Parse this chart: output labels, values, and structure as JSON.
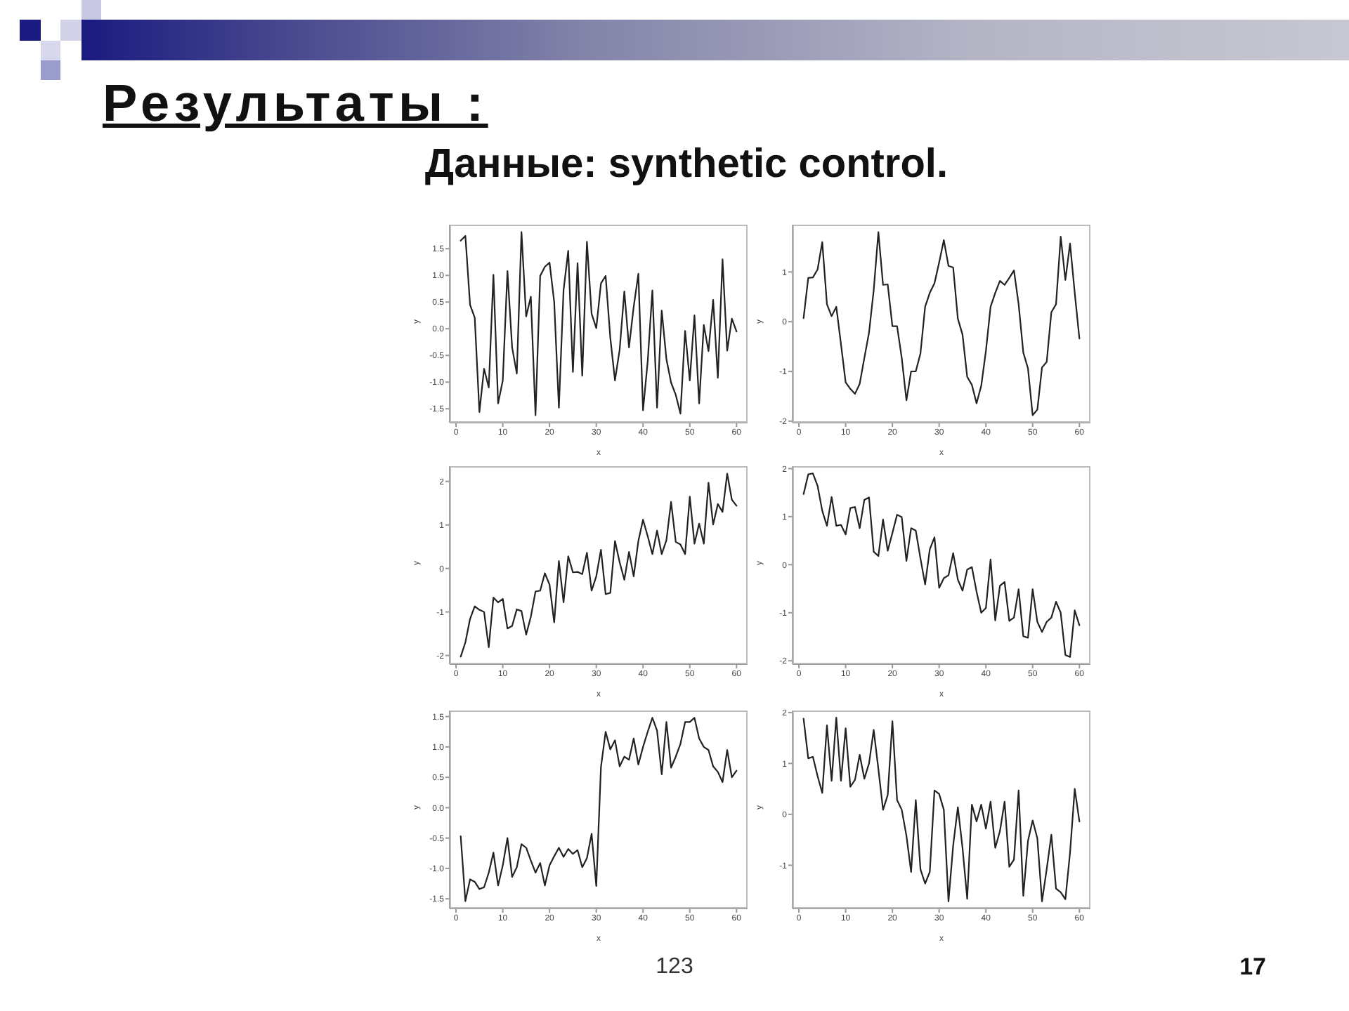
{
  "chart_data": [
    {
      "type": "line",
      "title": "Результаты :",
      "subtitle": "Данные: synthetic control.",
      "annotations": [
        "123",
        "17"
      ],
      "xlabel": "x",
      "ylabel": "y",
      "color": "#222222",
      "marker": "none",
      "xlim": [
        -1.36,
        62.36
      ],
      "xticks": [
        0,
        10,
        20,
        30,
        40,
        50,
        60
      ],
      "ylim": [
        -1.76,
        1.95
      ],
      "yticks": [
        -1.5,
        {
          "value": -1,
          "label": "-1.0"
        },
        -0.5,
        {
          "value": 0,
          "label": "0.0"
        },
        0.5,
        {
          "value": 1,
          "label": "1.0"
        },
        1.5
      ],
      "x": [
        1,
        2,
        3,
        4,
        5,
        6,
        7,
        8,
        9,
        10,
        11,
        12,
        13,
        14,
        15,
        16,
        17,
        18,
        19,
        20,
        21,
        22,
        23,
        24,
        25,
        26,
        27,
        28,
        29,
        30,
        31,
        32,
        33,
        34,
        35,
        36,
        37,
        38,
        39,
        40,
        41,
        42,
        43,
        44,
        45,
        46,
        47,
        48,
        49,
        50,
        51,
        52,
        53,
        54,
        55,
        56,
        57,
        58,
        59,
        60
      ],
      "values": [
        1.65,
        1.74,
        0.45,
        0.21,
        -1.56,
        -0.75,
        -1.1,
        1.01,
        -1.4,
        -0.97,
        1.08,
        -0.35,
        -0.84,
        1.81,
        0.23,
        0.6,
        -1.62,
        0.99,
        1.16,
        1.24,
        0.5,
        -1.48,
        0.72,
        1.46,
        -0.81,
        1.23,
        -0.88,
        1.63,
        0.28,
        0.01,
        0.85,
        0.99,
        -0.17,
        -0.97,
        -0.39,
        0.7,
        -0.35,
        0.41,
        1.03,
        -1.53,
        -0.61,
        0.72,
        -1.48,
        0.34,
        -0.57,
        -1.01,
        -1.24,
        -1.59,
        -0.04,
        -0.97,
        0.25,
        -1.4,
        0.07,
        -0.42,
        0.54,
        -0.92,
        1.3,
        -0.41,
        0.19,
        -0.05
      ]
    },
    {
      "type": "line",
      "xlabel": "x",
      "ylabel": "y",
      "color": "#222222",
      "marker": "none",
      "xlim": [
        -1.36,
        62.36
      ],
      "xticks": [
        0,
        10,
        20,
        30,
        40,
        50,
        60
      ],
      "ylim": [
        -2.03,
        1.95
      ],
      "yticks": [
        -2,
        -1,
        0,
        1
      ],
      "x": [
        1,
        2,
        3,
        4,
        5,
        6,
        7,
        8,
        9,
        10,
        11,
        12,
        13,
        14,
        15,
        16,
        17,
        18,
        19,
        20,
        21,
        22,
        23,
        24,
        25,
        26,
        27,
        28,
        29,
        30,
        31,
        32,
        33,
        34,
        35,
        36,
        37,
        38,
        39,
        40,
        41,
        42,
        43,
        44,
        45,
        46,
        47,
        48,
        49,
        50,
        51,
        52,
        53,
        54,
        55,
        56,
        57,
        58,
        59,
        60
      ],
      "values": [
        0.07,
        0.88,
        0.89,
        1.05,
        1.6,
        0.35,
        0.11,
        0.3,
        -0.45,
        -1.22,
        -1.35,
        -1.45,
        -1.25,
        -0.73,
        -0.22,
        0.63,
        1.8,
        0.74,
        0.75,
        -0.09,
        -0.09,
        -0.73,
        -1.58,
        -1.0,
        -1.0,
        -0.64,
        0.3,
        0.58,
        0.77,
        1.19,
        1.64,
        1.12,
        1.09,
        0.06,
        -0.26,
        -1.11,
        -1.27,
        -1.64,
        -1.29,
        -0.59,
        0.3,
        0.58,
        0.82,
        0.74,
        0.88,
        1.03,
        0.35,
        -0.62,
        -0.94,
        -1.88,
        -1.77,
        -0.92,
        -0.81,
        0.19,
        0.35,
        1.71,
        0.84,
        1.57,
        0.58,
        -0.34
      ]
    },
    {
      "type": "line",
      "xlabel": "x",
      "ylabel": "y",
      "color": "#222222",
      "marker": "none",
      "xlim": [
        -1.36,
        62.36
      ],
      "xticks": [
        0,
        10,
        20,
        30,
        40,
        50,
        60
      ],
      "ylim": [
        -2.2,
        2.35
      ],
      "yticks": [
        -2,
        -1,
        0,
        1,
        2
      ],
      "x": [
        1,
        2,
        3,
        4,
        5,
        6,
        7,
        8,
        9,
        10,
        11,
        12,
        13,
        14,
        15,
        16,
        17,
        18,
        19,
        20,
        21,
        22,
        23,
        24,
        25,
        26,
        27,
        28,
        29,
        30,
        31,
        32,
        33,
        34,
        35,
        36,
        37,
        38,
        39,
        40,
        41,
        42,
        43,
        44,
        45,
        46,
        47,
        48,
        49,
        50,
        51,
        52,
        53,
        54,
        55,
        56,
        57,
        58,
        59,
        60
      ],
      "values": [
        -2.03,
        -1.7,
        -1.16,
        -0.87,
        -0.95,
        -1.0,
        -1.81,
        -0.67,
        -0.78,
        -0.7,
        -1.38,
        -1.32,
        -0.94,
        -0.98,
        -1.52,
        -1.11,
        -0.53,
        -0.51,
        -0.11,
        -0.37,
        -1.24,
        0.17,
        -0.78,
        0.28,
        -0.09,
        -0.08,
        -0.13,
        0.36,
        -0.51,
        -0.18,
        0.43,
        -0.59,
        -0.56,
        0.63,
        0.14,
        -0.26,
        0.38,
        -0.18,
        0.63,
        1.12,
        0.74,
        0.33,
        0.87,
        0.33,
        0.65,
        1.53,
        0.61,
        0.55,
        0.33,
        1.65,
        0.57,
        1.03,
        0.57,
        1.97,
        1.01,
        1.48,
        1.3,
        2.18,
        1.58,
        1.44
      ]
    },
    {
      "type": "line",
      "xlabel": "x",
      "ylabel": "y",
      "color": "#222222",
      "marker": "none",
      "xlim": [
        -1.36,
        62.36
      ],
      "xticks": [
        0,
        10,
        20,
        30,
        40,
        50,
        60
      ],
      "ylim": [
        -2.07,
        2.05
      ],
      "yticks": [
        -2,
        -1,
        0,
        1,
        2
      ],
      "x": [
        1,
        2,
        3,
        4,
        5,
        6,
        7,
        8,
        9,
        10,
        11,
        12,
        13,
        14,
        15,
        16,
        17,
        18,
        19,
        20,
        21,
        22,
        23,
        24,
        25,
        26,
        27,
        28,
        29,
        30,
        31,
        32,
        33,
        34,
        35,
        36,
        37,
        38,
        39,
        40,
        41,
        42,
        43,
        44,
        45,
        46,
        47,
        48,
        49,
        50,
        51,
        52,
        53,
        54,
        55,
        56,
        57,
        58,
        59,
        60
      ],
      "values": [
        1.47,
        1.88,
        1.9,
        1.64,
        1.12,
        0.81,
        1.41,
        0.81,
        0.83,
        0.63,
        1.18,
        1.2,
        0.76,
        1.35,
        1.4,
        0.27,
        0.18,
        0.94,
        0.29,
        0.66,
        1.04,
        0.99,
        0.08,
        0.76,
        0.71,
        0.13,
        -0.41,
        0.32,
        0.57,
        -0.48,
        -0.28,
        -0.22,
        0.24,
        -0.31,
        -0.54,
        -0.1,
        -0.05,
        -0.56,
        -1.0,
        -0.9,
        0.11,
        -1.16,
        -0.44,
        -0.36,
        -1.17,
        -1.1,
        -0.51,
        -1.49,
        -1.52,
        -0.51,
        -1.19,
        -1.4,
        -1.19,
        -1.1,
        -0.77,
        -1.0,
        -1.88,
        -1.92,
        -0.95,
        -1.26
      ]
    },
    {
      "type": "line",
      "xlabel": "x",
      "ylabel": "y",
      "color": "#222222",
      "marker": "none",
      "xlim": [
        -1.36,
        62.36
      ],
      "xticks": [
        0,
        10,
        20,
        30,
        40,
        50,
        60
      ],
      "ylim": [
        -1.66,
        1.6
      ],
      "yticks": [
        -1.5,
        {
          "value": -1,
          "label": "-1.0"
        },
        -0.5,
        {
          "value": 0,
          "label": "0.0"
        },
        0.5,
        {
          "value": 1,
          "label": "1.0"
        },
        1.5
      ],
      "x": [
        1,
        2,
        3,
        4,
        5,
        6,
        7,
        8,
        9,
        10,
        11,
        12,
        13,
        14,
        15,
        16,
        17,
        18,
        19,
        20,
        21,
        22,
        23,
        24,
        25,
        26,
        27,
        28,
        29,
        30,
        31,
        32,
        33,
        34,
        35,
        36,
        37,
        38,
        39,
        40,
        41,
        42,
        43,
        44,
        45,
        46,
        47,
        48,
        49,
        50,
        51,
        52,
        53,
        54,
        55,
        56,
        57,
        58,
        59,
        60
      ],
      "values": [
        -0.47,
        -1.54,
        -1.18,
        -1.22,
        -1.34,
        -1.31,
        -1.07,
        -0.74,
        -1.28,
        -0.95,
        -0.5,
        -1.14,
        -0.98,
        -0.6,
        -0.66,
        -0.87,
        -1.07,
        -0.91,
        -1.28,
        -0.95,
        -0.8,
        -0.66,
        -0.81,
        -0.68,
        -0.76,
        -0.7,
        -0.98,
        -0.83,
        -0.43,
        -1.29,
        0.67,
        1.25,
        0.96,
        1.11,
        0.68,
        0.84,
        0.79,
        1.14,
        0.71,
        1.0,
        1.25,
        1.48,
        1.27,
        0.55,
        1.41,
        0.66,
        0.84,
        1.05,
        1.41,
        1.41,
        1.48,
        1.14,
        1.0,
        0.95,
        0.68,
        0.59,
        0.42,
        0.95,
        0.5,
        0.61
      ]
    },
    {
      "type": "line",
      "xlabel": "x",
      "ylabel": "y",
      "color": "#222222",
      "marker": "none",
      "xlim": [
        -1.36,
        62.36
      ],
      "xticks": [
        0,
        10,
        20,
        30,
        40,
        50,
        60
      ],
      "ylim": [
        -1.85,
        2.04
      ],
      "yticks": [
        -1,
        0,
        1,
        2
      ],
      "x": [
        1,
        2,
        3,
        4,
        5,
        6,
        7,
        8,
        9,
        10,
        11,
        12,
        13,
        14,
        15,
        16,
        17,
        18,
        19,
        20,
        21,
        22,
        23,
        24,
        25,
        26,
        27,
        28,
        29,
        30,
        31,
        32,
        33,
        34,
        35,
        36,
        37,
        38,
        39,
        40,
        41,
        42,
        43,
        44,
        45,
        46,
        47,
        48,
        49,
        50,
        51,
        52,
        53,
        54,
        55,
        56,
        57,
        58,
        59,
        60
      ],
      "values": [
        1.88,
        1.1,
        1.13,
        0.75,
        0.42,
        1.75,
        0.66,
        1.9,
        0.66,
        1.69,
        0.54,
        0.68,
        1.17,
        0.7,
        1.0,
        1.66,
        0.89,
        0.09,
        0.38,
        1.83,
        0.28,
        0.09,
        -0.42,
        -1.13,
        0.28,
        -1.08,
        -1.36,
        -1.13,
        0.47,
        0.4,
        0.09,
        -1.71,
        -0.61,
        0.14,
        -0.66,
        -1.66,
        0.19,
        -0.14,
        0.19,
        -0.28,
        0.25,
        -0.66,
        -0.33,
        0.25,
        -1.03,
        -0.89,
        0.47,
        -1.6,
        -0.52,
        -0.12,
        -0.47,
        -1.71,
        -1.08,
        -0.4,
        -1.46,
        -1.53,
        -1.67,
        -0.75,
        0.5,
        -0.14
      ]
    }
  ]
}
